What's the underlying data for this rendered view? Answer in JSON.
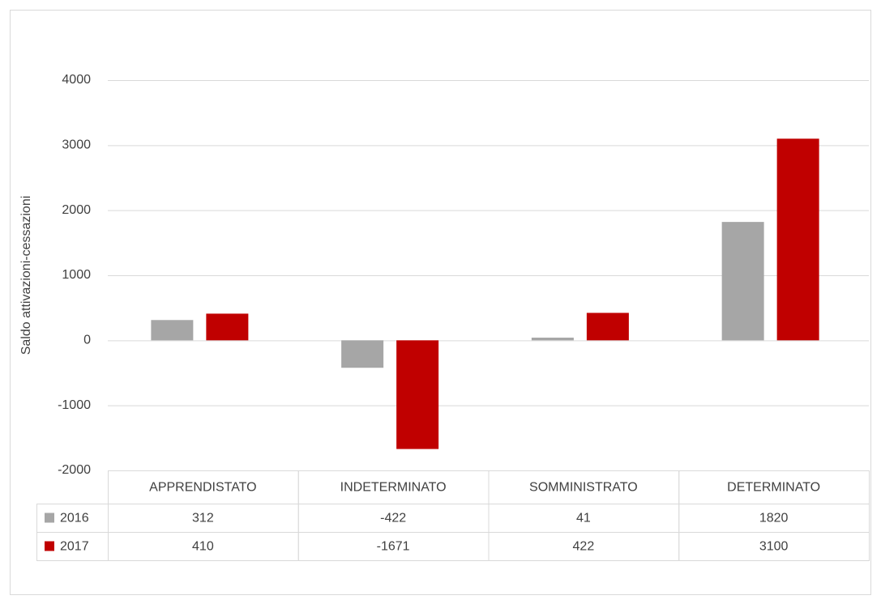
{
  "chart_data": {
    "type": "bar",
    "y_label": "Saldo attivazioni-cessazioni",
    "categories": [
      "APPRENDISTATO",
      "INDETERMINATO",
      "SOMMINISTRATO",
      "DETERMINATO"
    ],
    "series": [
      {
        "name": "2016",
        "color": "#a6a6a6",
        "values": [
          312,
          -422,
          41,
          1820
        ]
      },
      {
        "name": "2017",
        "color": "#c00000",
        "values": [
          410,
          -1671,
          422,
          3100
        ]
      }
    ],
    "ylim": [
      -2000,
      4000
    ],
    "yticks": [
      -2000,
      -1000,
      0,
      1000,
      2000,
      3000,
      4000
    ],
    "grid": true,
    "legend": "table"
  }
}
